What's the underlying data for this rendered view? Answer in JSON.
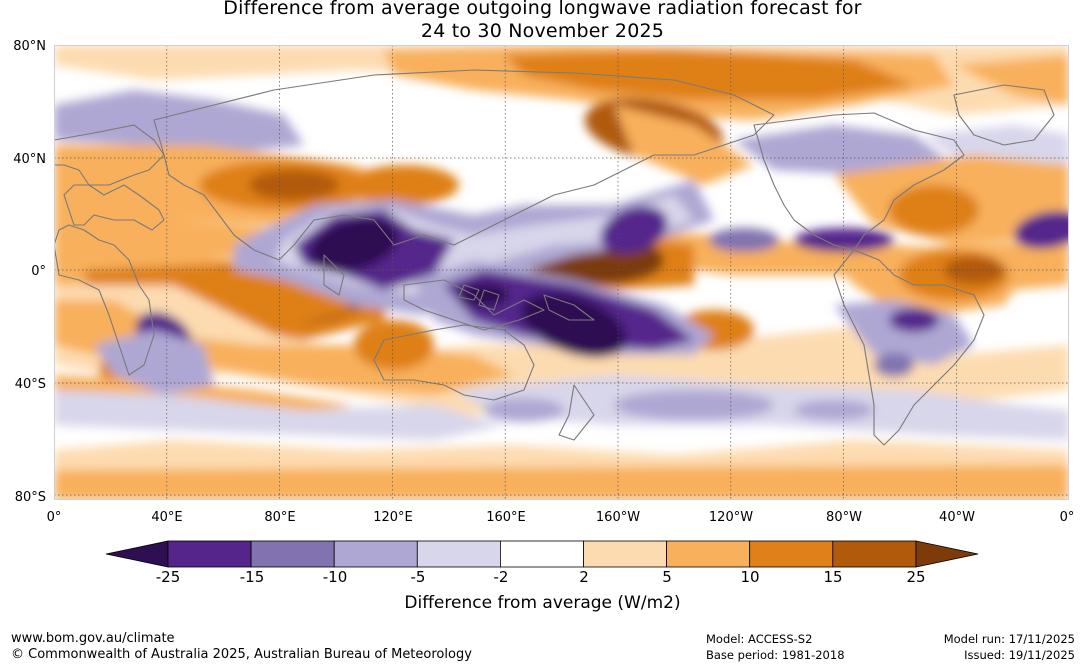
{
  "title": {
    "line1": "Difference from average outgoing longwave radiation forecast for",
    "line2": "24 to 30 November 2025"
  },
  "map": {
    "lat_labels": [
      "80°N",
      "40°N",
      "0°",
      "40°S",
      "80°S"
    ],
    "lon_labels": [
      "0°",
      "40°E",
      "80°E",
      "120°E",
      "160°E",
      "160°W",
      "120°W",
      "80°W",
      "40°W",
      "0°"
    ],
    "colors": {
      "land_outline": "#7a7a7a",
      "gridline": "#555555"
    }
  },
  "legend": {
    "tick_labels": [
      "-25",
      "-15",
      "-10",
      "-5",
      "-2",
      "2",
      "5",
      "10",
      "15",
      "25"
    ],
    "bins": [
      {
        "range": "< -25",
        "color": "#2d0f52"
      },
      {
        "range": "-25 to -15",
        "color": "#55258c"
      },
      {
        "range": "-15 to -10",
        "color": "#8273b0"
      },
      {
        "range": "-10 to -5",
        "color": "#aea7d3"
      },
      {
        "range": "-5 to -2",
        "color": "#d8d6ea"
      },
      {
        "range": "-2 to 2",
        "color": "#ffffff"
      },
      {
        "range": "2 to 5",
        "color": "#fddbb0"
      },
      {
        "range": "5 to 10",
        "color": "#f8b05c"
      },
      {
        "range": "10 to 15",
        "color": "#df8018"
      },
      {
        "range": "15 to 25",
        "color": "#b15a0c"
      },
      {
        "range": "> 25",
        "color": "#7c3b08"
      }
    ],
    "title": "Difference from average (W/m2)"
  },
  "footer": {
    "website": "www.bom.gov.au/climate",
    "copyright": "© Commonwealth of Australia 2025, Australian Bureau of Meteorology",
    "model": "Model: ACCESS-S2",
    "base_period": "Base period: 1981-2018",
    "model_run": "Model run: 17/11/2025",
    "issued": "Issued: 19/11/2025"
  }
}
